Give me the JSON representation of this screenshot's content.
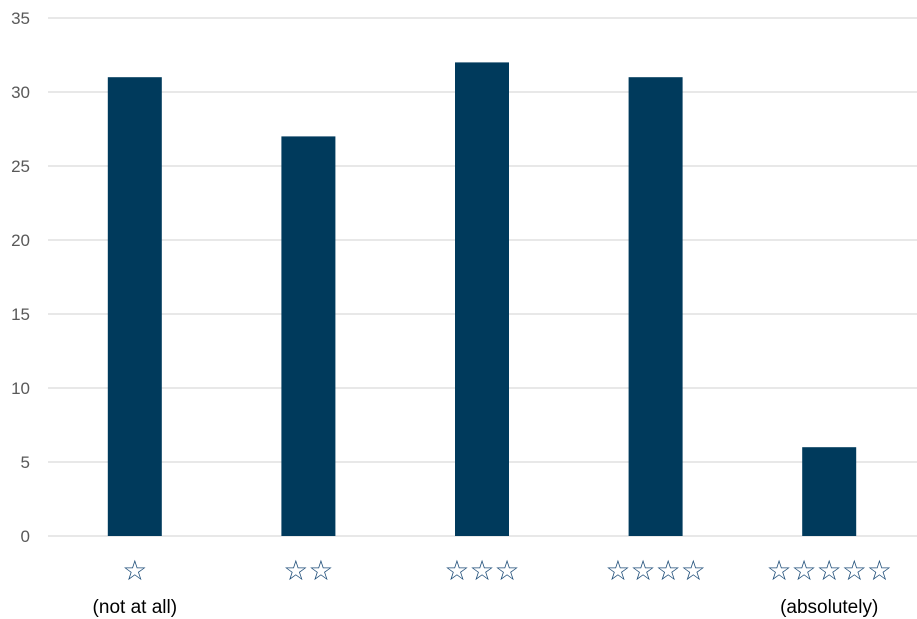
{
  "chart_data": {
    "type": "bar",
    "categories": [
      "☆",
      "☆☆",
      "☆☆☆",
      "☆☆☆☆",
      "☆☆☆☆☆"
    ],
    "category_sublabels": [
      "(not at all)",
      "",
      "",
      "",
      "(absolutely)"
    ],
    "values": [
      31,
      27,
      32,
      31,
      6
    ],
    "title": "",
    "xlabel": "",
    "ylabel": "",
    "ylim": [
      0,
      35
    ],
    "yticks": [
      0,
      5,
      10,
      15,
      20,
      25,
      30,
      35
    ],
    "grid": true,
    "legend": "none",
    "colors": {
      "bar": "#003a5c",
      "grid": "#d9d9d9",
      "tick_text": "#595959",
      "star": "#1f4e79",
      "sublabel_text": "#000000"
    }
  }
}
